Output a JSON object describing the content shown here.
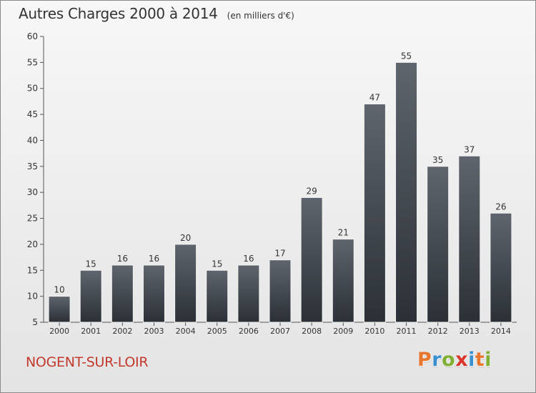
{
  "header": {
    "title": "Autres Charges 2000 à 2014",
    "subtitle": "(en milliers d'€)"
  },
  "footer": {
    "commune": "NOGENT-SUR-LOIR",
    "brand": "Proxiti",
    "brand_colors": [
      "#e8772e",
      "#3a8fd1",
      "#7fb034",
      "#d9352a",
      "#3a8fd1",
      "#e8772e",
      "#7fb034"
    ]
  },
  "colors": {
    "bar_top": "#5f656c",
    "bar_bottom": "#2b3037",
    "title": "#333333",
    "commune": "#c23a2e"
  },
  "chart_data": {
    "type": "bar",
    "title": "Autres Charges 2000 à 2014",
    "subtitle": "(en milliers d'€)",
    "categories": [
      "2000",
      "2001",
      "2002",
      "2003",
      "2004",
      "2005",
      "2006",
      "2007",
      "2008",
      "2009",
      "2010",
      "2011",
      "2012",
      "2013",
      "2014"
    ],
    "values": [
      10,
      15,
      16,
      16,
      20,
      15,
      16,
      17,
      29,
      21,
      47,
      55,
      35,
      37,
      26
    ],
    "ylim": [
      5,
      60
    ],
    "yticks": [
      5,
      10,
      15,
      20,
      25,
      30,
      35,
      40,
      45,
      50,
      55,
      60
    ],
    "xlabel": "",
    "ylabel": "",
    "grid": false,
    "data_labels": true
  }
}
